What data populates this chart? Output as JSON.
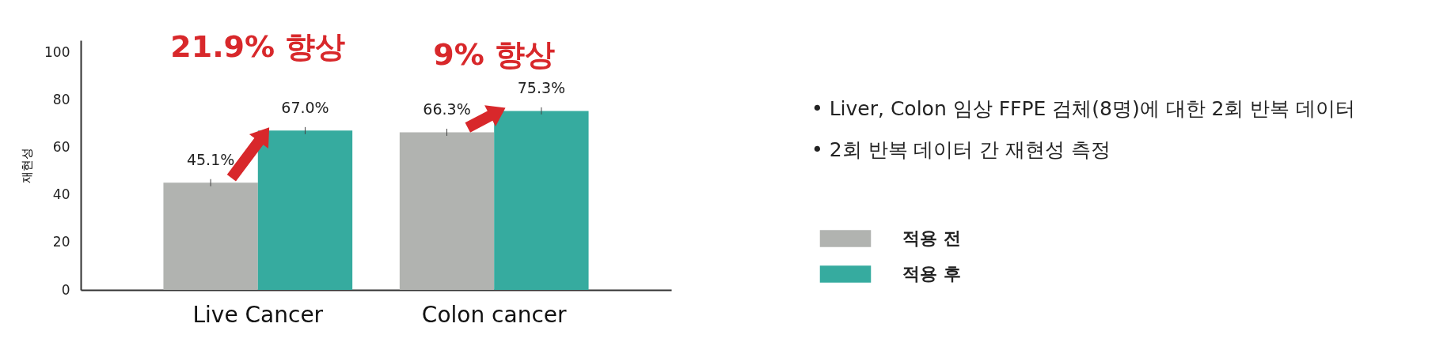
{
  "chart_data": {
    "type": "bar",
    "ylabel": "재현성",
    "categories": [
      "Live Cancer",
      "Colon cancer"
    ],
    "series": [
      {
        "name": "적용 전",
        "color": "#b1b3b0",
        "values": [
          45.1,
          66.3
        ],
        "errors": [
          1.5,
          1.5
        ],
        "value_labels": [
          "45.1%",
          "66.3%"
        ]
      },
      {
        "name": "적용 후",
        "color": "#36ab9f",
        "values": [
          67.0,
          75.3
        ],
        "errors": [
          1.5,
          1.5
        ],
        "value_labels": [
          "67.0%",
          "75.3%"
        ]
      }
    ],
    "ylim": [
      0,
      105
    ],
    "yticks": [
      0,
      20,
      40,
      60,
      80,
      100
    ],
    "grid": false,
    "legend": "right",
    "annotations": [
      "21.9% 향상",
      "9% 향상",
      "• Liver, Colon 임상 FFPE 검체(8명)에 대한 2회 반복 데이터",
      "• 2회 반복 데이터 간 재현성 측정"
    ]
  }
}
